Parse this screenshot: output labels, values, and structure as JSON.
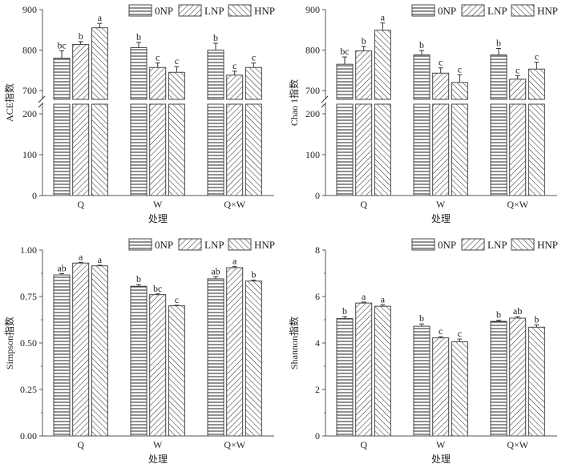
{
  "legend": {
    "series": [
      {
        "key": "0NP",
        "label": "0NP",
        "pattern": "horizontal"
      },
      {
        "key": "LNP",
        "label": "LNP",
        "pattern": "forward-diagonal"
      },
      {
        "key": "HNP",
        "label": "HNP",
        "pattern": "back-diagonal"
      }
    ],
    "placement": "top-right"
  },
  "colors": {
    "ink": "#222222",
    "axis": "#555555",
    "background": "#ffffff"
  },
  "chart_data": [
    {
      "type": "bar",
      "id": "ace",
      "ylabel": "ACE指数",
      "xlabel": "处理",
      "categories": [
        "Q",
        "W",
        "Q×W"
      ],
      "axis_break": {
        "lower": [
          0,
          250
        ],
        "upper": [
          680,
          900
        ]
      },
      "yticks_lower": [
        "0",
        "100",
        "200"
      ],
      "yticks_upper": [
        "700",
        "800",
        "900"
      ],
      "ytick_values_lower": [
        0,
        100,
        200
      ],
      "ytick_values_upper": [
        700,
        800,
        900
      ],
      "series": [
        {
          "name": "0NP",
          "values": [
            780,
            806,
            800
          ],
          "errors": [
            18,
            13,
            17
          ],
          "letters": [
            "bc",
            "b",
            "b"
          ]
        },
        {
          "name": "LNP",
          "values": [
            814,
            757,
            738
          ],
          "errors": [
            7,
            11,
            10
          ],
          "letters": [
            "b",
            "c",
            "c"
          ]
        },
        {
          "name": "HNP",
          "values": [
            855,
            745,
            757
          ],
          "errors": [
            11,
            14,
            11
          ],
          "letters": [
            "a",
            "c",
            "c"
          ]
        }
      ]
    },
    {
      "type": "bar",
      "id": "chao1",
      "ylabel": "Chao 1指数",
      "xlabel": "处理",
      "categories": [
        "Q",
        "W",
        "Q×W"
      ],
      "axis_break": {
        "lower": [
          0,
          250
        ],
        "upper": [
          680,
          900
        ]
      },
      "yticks_lower": [
        "0",
        "100",
        "200"
      ],
      "yticks_upper": [
        "700",
        "800",
        "900"
      ],
      "ytick_values_lower": [
        0,
        100,
        200
      ],
      "ytick_values_upper": [
        700,
        800,
        900
      ],
      "series": [
        {
          "name": "0NP",
          "values": [
            765,
            788,
            788
          ],
          "errors": [
            18,
            11,
            16
          ],
          "letters": [
            "bc",
            "b",
            "b"
          ]
        },
        {
          "name": "LNP",
          "values": [
            798,
            743,
            728
          ],
          "errors": [
            11,
            13,
            9
          ],
          "letters": [
            "b",
            "c",
            "c"
          ]
        },
        {
          "name": "HNP",
          "values": [
            849,
            720,
            753
          ],
          "errors": [
            18,
            19,
            17
          ],
          "letters": [
            "a",
            "c",
            "c"
          ]
        }
      ]
    },
    {
      "type": "bar",
      "id": "simpson",
      "ylabel": "Simpson指数",
      "xlabel": "处理",
      "categories": [
        "Q",
        "W",
        "Q×W"
      ],
      "ylim": [
        0,
        1.0
      ],
      "yticks": [
        "0.00",
        "0.25",
        "0.50",
        "0.75",
        "1.00"
      ],
      "ytick_values": [
        0,
        0.25,
        0.5,
        0.75,
        1.0
      ],
      "series": [
        {
          "name": "0NP",
          "values": [
            0.866,
            0.805,
            0.845
          ],
          "errors": [
            0.007,
            0.009,
            0.011
          ],
          "letters": [
            "ab",
            "b",
            "ab"
          ]
        },
        {
          "name": "LNP",
          "values": [
            0.93,
            0.76,
            0.905
          ],
          "errors": [
            0.004,
            0.004,
            0.006
          ],
          "letters": [
            "a",
            "bc",
            "a"
          ]
        },
        {
          "name": "HNP",
          "values": [
            0.915,
            0.7,
            0.833
          ],
          "errors": [
            0.003,
            0.003,
            0.005
          ],
          "letters": [
            "a",
            "c",
            "b"
          ]
        }
      ]
    },
    {
      "type": "bar",
      "id": "shannon",
      "ylabel": "Shannon指数",
      "xlabel": "处理",
      "categories": [
        "Q",
        "W",
        "Q×W"
      ],
      "ylim": [
        0,
        8
      ],
      "yticks": [
        "0",
        "2",
        "4",
        "6",
        "8"
      ],
      "ytick_values": [
        0,
        2,
        4,
        6,
        8
      ],
      "series": [
        {
          "name": "0NP",
          "values": [
            5.05,
            4.72,
            4.93
          ],
          "errors": [
            0.08,
            0.1,
            0.05
          ],
          "letters": [
            "b",
            "b",
            "b"
          ]
        },
        {
          "name": "LNP",
          "values": [
            5.72,
            4.22,
            5.07
          ],
          "errors": [
            0.04,
            0.05,
            0.06
          ],
          "letters": [
            "a",
            "c",
            "ab"
          ]
        },
        {
          "name": "HNP",
          "values": [
            5.58,
            4.05,
            4.68
          ],
          "errors": [
            0.06,
            0.12,
            0.1
          ],
          "letters": [
            "a",
            "c",
            "b"
          ]
        }
      ]
    }
  ]
}
